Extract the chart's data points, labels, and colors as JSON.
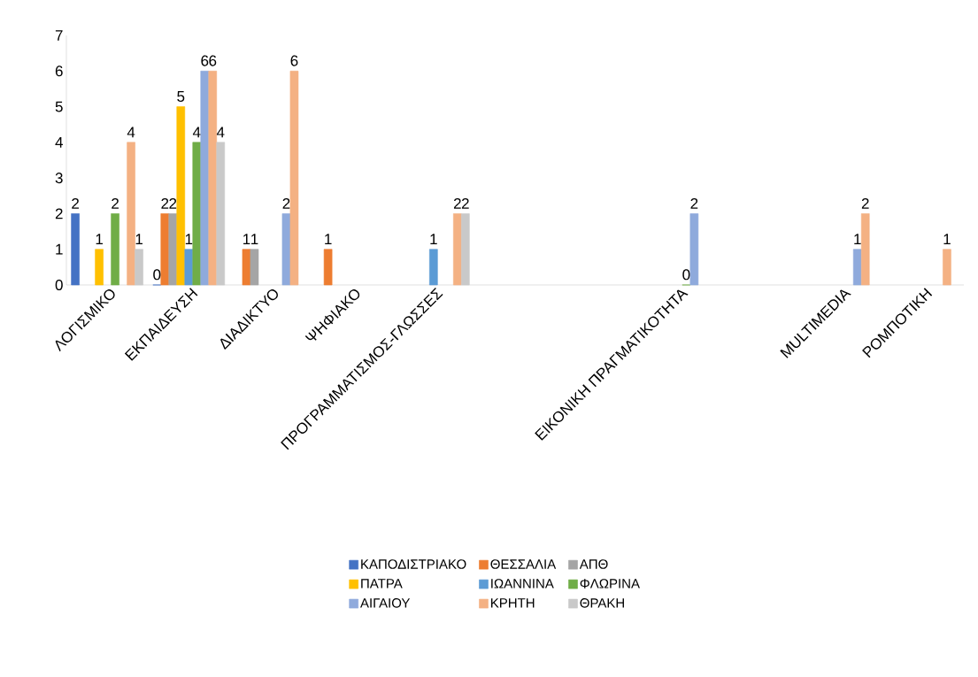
{
  "chart_data": {
    "type": "bar",
    "categories": [
      "ΛΟΓΙΣΜΙΚΟ",
      "ΕΚΠΑΙΔΕΥΣΗ",
      "ΔΙΑΔΙΚΤΥΟ",
      "ΨΗΦΙΑΚΟ",
      "ΠΡΟΓΡΑΜΜΑΤΙΣΜΟΣ-ΓΛΩΣΣΕΣ",
      null,
      null,
      "ΕΙΚΟΝΙΚΗ ΠΡΑΓΜΑΤΙΚΟΤΗΤΑ",
      null,
      "MULTIMEDIA",
      "ΡΟΜΠΟΤΙΚΗ"
    ],
    "series": [
      {
        "name": "ΚΑΠΟΔΙΣΤΡΙΑΚΟ",
        "color": "#4472c4",
        "values": [
          2,
          0,
          null,
          null,
          null,
          null,
          null,
          null,
          null,
          null,
          null
        ]
      },
      {
        "name": "ΘΕΣΣΑΛΙΑ",
        "color": "#ed7d31",
        "values": [
          null,
          2,
          1,
          1,
          null,
          null,
          null,
          null,
          null,
          null,
          null
        ]
      },
      {
        "name": "ΑΠΘ",
        "color": "#a5a5a5",
        "values": [
          null,
          2,
          1,
          null,
          null,
          null,
          null,
          null,
          null,
          null,
          null
        ]
      },
      {
        "name": "ΠΑΤΡΑ",
        "color": "#ffc000",
        "values": [
          1,
          5,
          null,
          null,
          null,
          null,
          null,
          null,
          null,
          null,
          null
        ]
      },
      {
        "name": "ΙΩΑΝΝΙΝΑ",
        "color": "#5b9bd5",
        "values": [
          null,
          1,
          null,
          null,
          1,
          null,
          null,
          null,
          null,
          null,
          null
        ]
      },
      {
        "name": "ΦΛΩΡΙΝΑ",
        "color": "#70ad47",
        "values": [
          2,
          4,
          null,
          null,
          null,
          null,
          null,
          0,
          null,
          null,
          null
        ]
      },
      {
        "name": "ΑΙΓΑΙΟΥ",
        "color": "#8faadc",
        "values": [
          null,
          6,
          2,
          null,
          null,
          null,
          null,
          2,
          null,
          1,
          null
        ]
      },
      {
        "name": "ΚΡΗΤΗ",
        "color": "#f4b183",
        "values": [
          4,
          6,
          6,
          null,
          2,
          null,
          null,
          null,
          null,
          2,
          1
        ]
      },
      {
        "name": "ΘΡΑΚΗ",
        "color": "#c9c9c9",
        "values": [
          1,
          4,
          null,
          null,
          2,
          null,
          null,
          null,
          null,
          null,
          null
        ]
      }
    ],
    "ylim": [
      0,
      7
    ],
    "yticks": [
      0,
      1,
      2,
      3,
      4,
      5,
      6,
      7
    ],
    "data_labels": true,
    "legend": "bottom"
  }
}
